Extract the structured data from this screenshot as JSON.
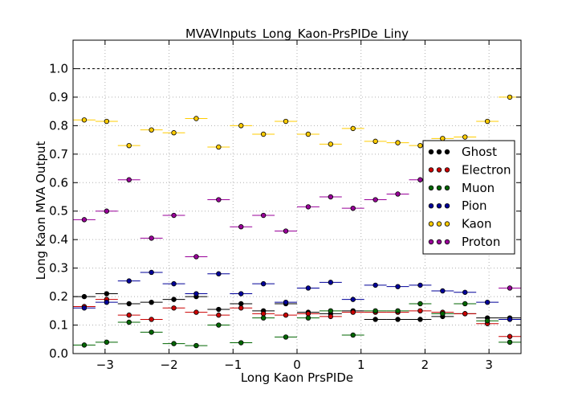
{
  "chart_data": {
    "type": "scatter",
    "title": "MVAVInputs_Long_Kaon-PrsPIDe_Liny",
    "xlabel": "Long Kaon PrsPIDe",
    "ylabel": "Long Kaon MVA Output",
    "xlim": [
      -3.5,
      3.5
    ],
    "ylim": [
      0.0,
      1.1
    ],
    "x_ticks": [
      -3,
      -2,
      -1,
      0,
      1,
      2,
      3
    ],
    "x_tick_labels": [
      "−3",
      "−2",
      "−1",
      "0",
      "1",
      "2",
      "3"
    ],
    "y_ticks": [
      0.0,
      0.1,
      0.2,
      0.3,
      0.4,
      0.5,
      0.6,
      0.7,
      0.8,
      0.9,
      1.0
    ],
    "y_tick_labels": [
      "0.0",
      "0.1",
      "0.2",
      "0.3",
      "0.4",
      "0.5",
      "0.6",
      "0.7",
      "0.8",
      "0.9",
      "1.0"
    ],
    "reference_line_y": 1.0,
    "grid": true,
    "legend_position": "right",
    "bin_half_width": 0.175,
    "x": [
      -3.325,
      -2.975,
      -2.625,
      -2.275,
      -1.925,
      -1.575,
      -1.225,
      -0.875,
      -0.525,
      -0.175,
      0.175,
      0.525,
      0.875,
      1.225,
      1.575,
      1.925,
      2.275,
      2.625,
      2.975,
      3.325
    ],
    "series": [
      {
        "name": "Ghost",
        "color": "#000000",
        "values": [
          0.2,
          0.21,
          0.175,
          0.18,
          0.19,
          0.2,
          0.155,
          0.175,
          0.15,
          0.175,
          0.145,
          0.14,
          0.15,
          0.12,
          0.12,
          0.12,
          0.13,
          0.14,
          0.125,
          0.125
        ]
      },
      {
        "name": "Electron",
        "color": "#cc0000",
        "values": [
          0.165,
          0.19,
          0.135,
          0.12,
          0.16,
          0.145,
          0.135,
          0.16,
          0.14,
          0.135,
          0.14,
          0.13,
          0.145,
          0.145,
          0.145,
          0.15,
          0.145,
          0.14,
          0.105,
          0.06
        ]
      },
      {
        "name": "Muon",
        "color": "#006600",
        "values": [
          0.03,
          0.04,
          0.11,
          0.075,
          0.035,
          0.028,
          0.1,
          0.038,
          0.125,
          0.058,
          0.125,
          0.15,
          0.065,
          0.15,
          0.15,
          0.175,
          0.14,
          0.175,
          0.115,
          0.04
        ]
      },
      {
        "name": "Pion",
        "color": "#000099",
        "values": [
          0.16,
          0.18,
          0.255,
          0.285,
          0.245,
          0.21,
          0.28,
          0.21,
          0.245,
          0.18,
          0.23,
          0.25,
          0.19,
          0.24,
          0.235,
          0.24,
          0.22,
          0.215,
          0.18,
          0.12
        ]
      },
      {
        "name": "Kaon",
        "color": "#ffcc00",
        "values": [
          0.82,
          0.815,
          0.73,
          0.785,
          0.775,
          0.825,
          0.725,
          0.8,
          0.77,
          0.815,
          0.77,
          0.735,
          0.79,
          0.745,
          0.74,
          0.73,
          0.755,
          0.76,
          0.815,
          0.9
        ]
      },
      {
        "name": "Proton",
        "color": "#990099",
        "values": [
          0.47,
          0.5,
          0.61,
          0.405,
          0.485,
          0.34,
          0.54,
          0.445,
          0.485,
          0.43,
          0.515,
          0.55,
          0.51,
          0.54,
          0.56,
          0.61,
          0.64,
          0.665,
          0.665,
          0.23
        ]
      }
    ]
  }
}
